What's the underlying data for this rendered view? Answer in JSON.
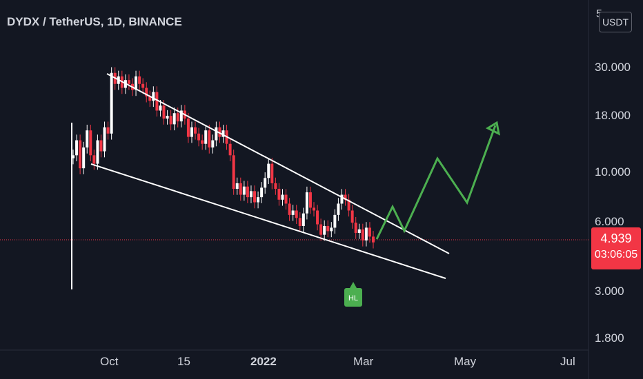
{
  "header": {
    "symbol_title": "DYDX / TetherUS, 1D, BINANCE",
    "currency_button": "USDT",
    "axis_top_partial": "5"
  },
  "price_badge": {
    "last_price": "4.939",
    "countdown": "03:06:05"
  },
  "colors": {
    "background": "#131722",
    "up_candle": "#ffffff",
    "down_candle": "#f23645",
    "projection": "#4caf50",
    "price_line": "#f23645",
    "trendline": "#ffffff",
    "text": "#d1d4dc"
  },
  "chart_data": {
    "type": "candlestick",
    "title": "DYDX / TetherUS, 1D, BINANCE",
    "y_scale": "log",
    "y_ticks": [
      "30.000",
      "18.000",
      "10.000",
      "6.000",
      "3.000",
      "1.800"
    ],
    "x_ticks": [
      {
        "label": "Oct",
        "bold": false
      },
      {
        "label": "15",
        "bold": false
      },
      {
        "label": "2022",
        "bold": true
      },
      {
        "label": "Mar",
        "bold": false
      },
      {
        "label": "May",
        "bold": false
      },
      {
        "label": "Jul",
        "bold": false
      }
    ],
    "price_seq": [
      12,
      14,
      10.5,
      13,
      15.5,
      12,
      11,
      14,
      12.5,
      16,
      15,
      28,
      25,
      27,
      24,
      26,
      25,
      23.5,
      27,
      25,
      24,
      22,
      21,
      23,
      19,
      20,
      17.5,
      18,
      16.5,
      18.5,
      17,
      19,
      17.5,
      14.5,
      16,
      15,
      14,
      13.5,
      15.5,
      13,
      14,
      16,
      14.5,
      15.5,
      13.5,
      12,
      8.5,
      9,
      8,
      8.7,
      7.8,
      8.3,
      7.4,
      7.8,
      8.6,
      9.5,
      11,
      9,
      8.5,
      7.6,
      8,
      7.3,
      6.5,
      6.8,
      6.3,
      5.8,
      6.6,
      8.2,
      7,
      6.8,
      5.9,
      5.3,
      5.8,
      5.5,
      5.7,
      6.5,
      7.3,
      8,
      7.6,
      6.8,
      6,
      5.4,
      5.6,
      5,
      5.7,
      5.2,
      4.9
    ],
    "annotation": "HL",
    "last_price": 4.939
  }
}
